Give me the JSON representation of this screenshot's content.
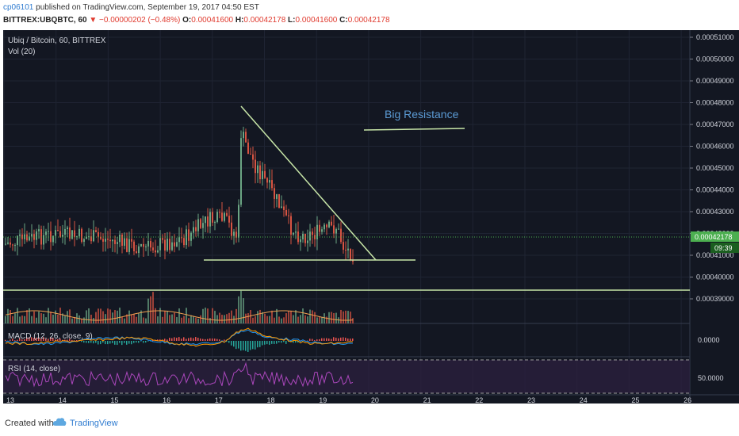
{
  "header": {
    "user": "cp06101",
    "published": "published on TradingView.com, September 19, 2017 04:50 EST",
    "symbol": "BITTREX:UBQBTC, 60",
    "change": "−0.00000202 (−0.48%)",
    "o_label": "O:",
    "o_value": "0.00041600",
    "h_label": "H:",
    "h_value": "0.00042178",
    "l_label": "L:",
    "l_value": "0.00041600",
    "c_label": "C:",
    "c_value": "0.00042178"
  },
  "panes": {
    "main_title": "Ubiq / Bitcoin, 60, BITTREX",
    "vol_label": "Vol (20)",
    "macd_label": "MACD (12, 26, close, 9)",
    "rsi_label": "RSI (14, close)"
  },
  "annotation": {
    "text": "Big Resistance"
  },
  "price_axis": {
    "ticks": [
      "0.00051000",
      "0.00050000",
      "0.00049000",
      "0.00048000",
      "0.00047000",
      "0.00046000",
      "0.00045000",
      "0.00044000",
      "0.00043000",
      "0.00042000",
      "0.00041000",
      "0.00040000",
      "0.00039000"
    ],
    "last_price": "0.00042178",
    "countdown": "09:39",
    "macd_tick": "0.0000",
    "rsi_tick": "50.0000"
  },
  "time_axis": {
    "labels": [
      "13",
      "14",
      "15",
      "16",
      "17",
      "18",
      "19",
      "20",
      "21",
      "22",
      "23",
      "24",
      "25",
      "26"
    ]
  },
  "colors": {
    "background": "#131722",
    "up": "#6ba583",
    "down": "#d75442",
    "annotation": "#5b9bd5",
    "trend": "#c8e6a8",
    "last_price": "#4caf50"
  },
  "footer": {
    "created": "Created with",
    "brand": "TradingView"
  }
}
